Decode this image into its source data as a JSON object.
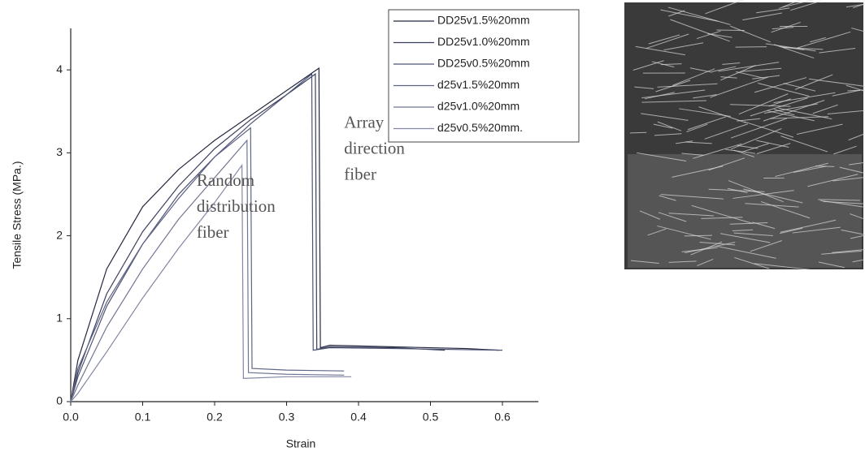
{
  "chart_data": {
    "type": "line",
    "x_label": "Strain",
    "y_label": "Tensile Stress (MPa.)",
    "xlim": [
      0,
      0.65
    ],
    "ylim": [
      0,
      4.5
    ],
    "xticks": [
      {
        "value": 0,
        "label": "0.0"
      },
      0.1,
      0.2,
      0.3,
      0.4,
      0.5,
      0.6
    ],
    "yticks": [
      0,
      1,
      2,
      3,
      4
    ],
    "legend": "top-right",
    "annotations": [
      {
        "lines": [
          "Array",
          "direction",
          "fiber"
        ],
        "x": 0.38,
        "y": 3.35
      },
      {
        "lines": [
          "Random",
          "distribution",
          "fiber"
        ],
        "x": 0.175,
        "y": 2.65
      }
    ],
    "series": [
      {
        "name": "DD25v1.5%20mm",
        "color": "#23283f",
        "x": [
          0,
          0.01,
          0.05,
          0.1,
          0.15,
          0.2,
          0.25,
          0.3,
          0.345,
          0.347,
          0.36,
          0.45,
          0.55,
          0.595
        ],
        "values": [
          0,
          0.5,
          1.6,
          2.35,
          2.8,
          3.15,
          3.45,
          3.75,
          4.02,
          0.65,
          0.68,
          0.66,
          0.64,
          0.62
        ]
      },
      {
        "name": "DD25v1.0%20mm",
        "color": "#3a3f5c",
        "x": [
          0,
          0.01,
          0.05,
          0.1,
          0.15,
          0.2,
          0.25,
          0.3,
          0.34,
          0.342,
          0.36,
          0.45,
          0.52
        ],
        "values": [
          0,
          0.35,
          1.3,
          2.05,
          2.6,
          3.05,
          3.4,
          3.7,
          3.95,
          0.63,
          0.66,
          0.65,
          0.62
        ]
      },
      {
        "name": "DD25v0.5%20mm",
        "color": "#4d5373",
        "x": [
          0,
          0.01,
          0.05,
          0.1,
          0.15,
          0.2,
          0.25,
          0.3,
          0.335,
          0.337,
          0.36,
          0.45,
          0.6
        ],
        "values": [
          0,
          0.3,
          1.15,
          1.9,
          2.5,
          2.95,
          3.35,
          3.7,
          3.95,
          0.62,
          0.65,
          0.64,
          0.62
        ]
      },
      {
        "name": "d25v1.5%20mm",
        "color": "#5f6585",
        "x": [
          0,
          0.01,
          0.05,
          0.1,
          0.15,
          0.2,
          0.25,
          0.252,
          0.3,
          0.38
        ],
        "values": [
          0,
          0.4,
          1.2,
          1.9,
          2.45,
          2.95,
          3.3,
          0.4,
          0.38,
          0.37
        ]
      },
      {
        "name": "d25v1.0%20mm",
        "color": "#707694",
        "x": [
          0,
          0.01,
          0.05,
          0.1,
          0.15,
          0.2,
          0.245,
          0.247,
          0.3,
          0.38
        ],
        "values": [
          0,
          0.2,
          0.9,
          1.6,
          2.2,
          2.7,
          3.15,
          0.35,
          0.33,
          0.32
        ]
      },
      {
        "name": "d25v0.5%20mm.",
        "color": "#8288a5",
        "x": [
          0,
          0.01,
          0.05,
          0.1,
          0.15,
          0.2,
          0.238,
          0.24,
          0.3,
          0.39
        ],
        "values": [
          0,
          0.1,
          0.6,
          1.25,
          1.85,
          2.4,
          2.85,
          0.28,
          0.3,
          0.3
        ]
      }
    ]
  }
}
